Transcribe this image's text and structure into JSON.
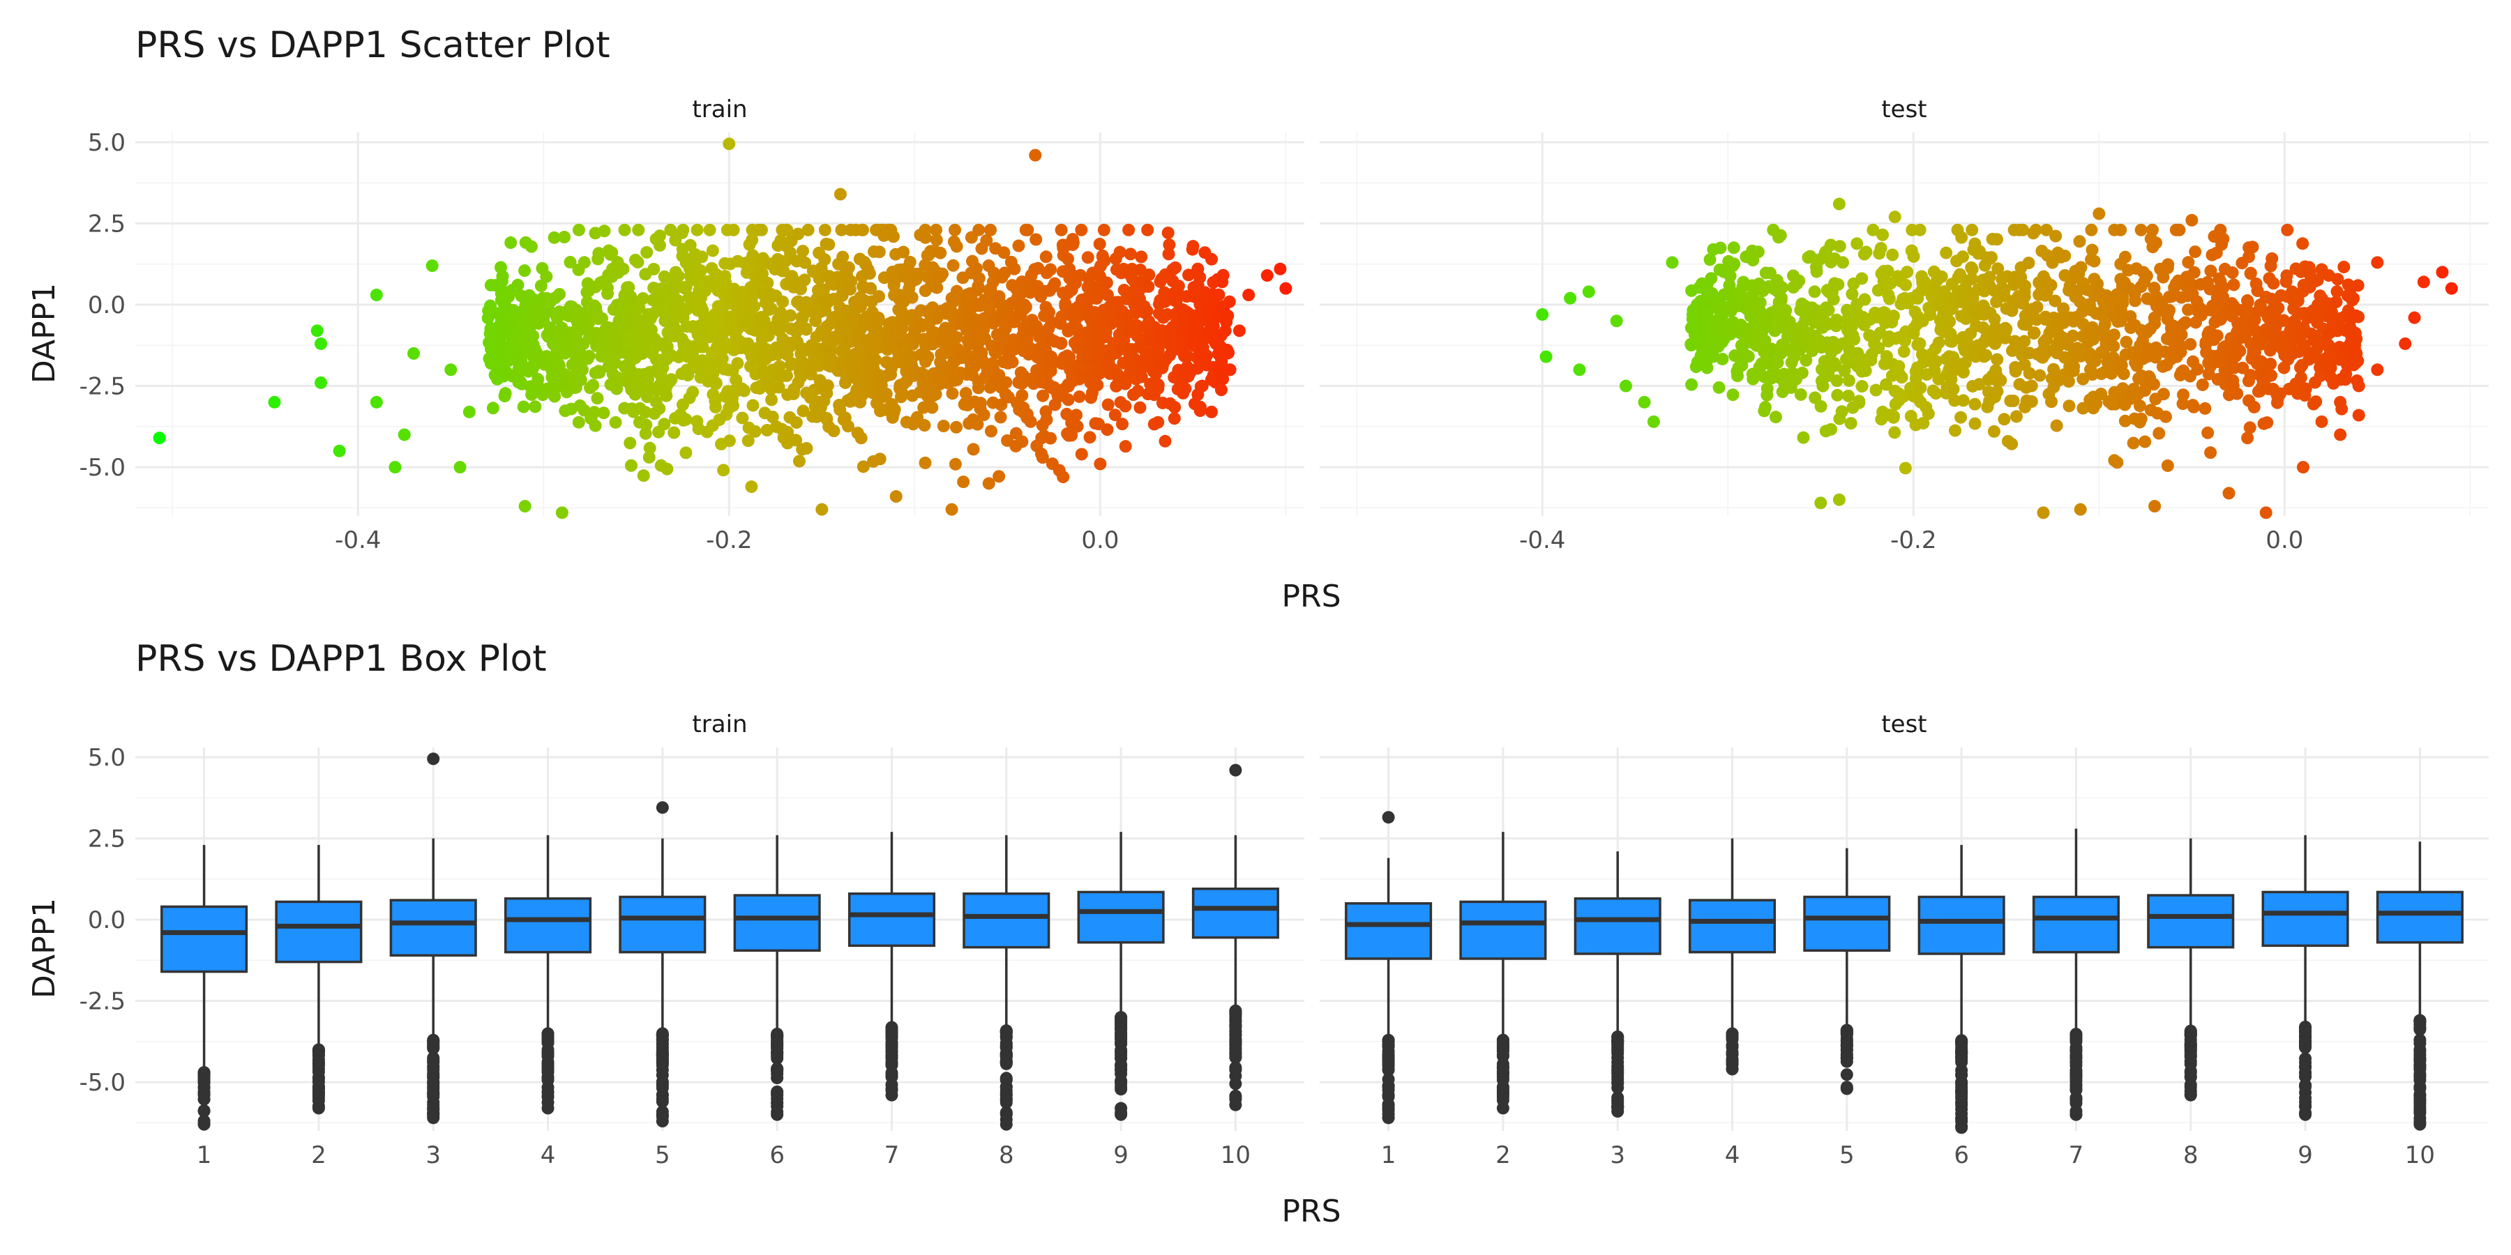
{
  "scatter": {
    "title": "PRS vs DAPP1 Scatter Plot",
    "xlabel": "PRS",
    "ylabel": "DAPP1",
    "color_low": "#00ff00",
    "color_mid": "#b8bb00",
    "color_high": "#ff1a00"
  },
  "box": {
    "title": "PRS vs DAPP1 Box Plot",
    "xlabel": "PRS",
    "ylabel": "DAPP1",
    "fill_color": "#1e90ff",
    "line_color": "#333333"
  },
  "chart_data": [
    {
      "type": "scatter",
      "title": "PRS vs DAPP1 Scatter Plot",
      "xlabel": "PRS",
      "ylabel": "DAPP1",
      "grid": true,
      "panels": [
        {
          "name": "train",
          "xlim": [
            -0.52,
            0.11
          ],
          "ylim": [
            -6.5,
            5.3
          ],
          "x_ticks": [
            -0.4,
            -0.2,
            0.0
          ],
          "x_tick_labels": [
            "-0.4",
            "-0.2",
            "0.0"
          ],
          "y_ticks": [
            -5.0,
            -2.5,
            0.0,
            2.5,
            5.0
          ],
          "y_tick_labels": [
            "-5.0",
            "-2.5",
            "0.0",
            "2.5",
            "5.0"
          ],
          "cloud": {
            "x_range": [
              -0.33,
              0.07
            ],
            "y_center": -1.0,
            "y_spread": 1.6,
            "count": 2200
          },
          "points": [
            [
              -0.507,
              -4.1
            ],
            [
              -0.445,
              -3.0
            ],
            [
              -0.42,
              -2.4
            ],
            [
              -0.42,
              -1.2
            ],
            [
              -0.422,
              -0.8
            ],
            [
              -0.41,
              -4.5
            ],
            [
              -0.39,
              -3.0
            ],
            [
              -0.39,
              0.3
            ],
            [
              -0.38,
              -5.0
            ],
            [
              -0.375,
              -4.0
            ],
            [
              -0.37,
              -1.5
            ],
            [
              -0.36,
              1.2
            ],
            [
              -0.35,
              -2.0
            ],
            [
              -0.345,
              -5.0
            ],
            [
              -0.34,
              -3.3
            ],
            [
              -0.2,
              4.95
            ],
            [
              -0.035,
              4.6
            ],
            [
              -0.14,
              3.4
            ],
            [
              -0.29,
              -6.4
            ],
            [
              -0.31,
              -6.2
            ],
            [
              -0.15,
              -6.3
            ],
            [
              -0.08,
              -6.3
            ],
            [
              0.1,
              0.5
            ],
            [
              0.097,
              1.1
            ],
            [
              0.09,
              0.9
            ],
            [
              0.08,
              0.3
            ],
            [
              0.075,
              -0.8
            ],
            [
              0.07,
              -2.0
            ],
            [
              0.06,
              -3.3
            ],
            [
              0.055,
              -2.5
            ],
            [
              0.05,
              1.8
            ],
            [
              0.04,
              -3.5
            ],
            [
              0.035,
              -4.2
            ],
            [
              0.0,
              -4.9
            ],
            [
              -0.02,
              -5.3
            ],
            [
              -0.01,
              -4.6
            ],
            [
              0.06,
              1.4
            ],
            [
              0.065,
              -1.3
            ],
            [
              -0.06,
              -5.5
            ],
            [
              -0.11,
              -5.9
            ]
          ]
        },
        {
          "name": "test",
          "xlim": [
            -0.52,
            0.11
          ],
          "ylim": [
            -6.5,
            5.3
          ],
          "x_ticks": [
            -0.4,
            -0.2,
            0.0
          ],
          "x_tick_labels": [
            "-0.4",
            "-0.2",
            "0.0"
          ],
          "y_ticks": [
            -5.0,
            -2.5,
            0.0,
            2.5,
            5.0
          ],
          "y_tick_labels": [
            "-5.0",
            "-2.5",
            "0.0",
            "2.5",
            "5.0"
          ],
          "cloud": {
            "x_range": [
              -0.32,
              0.04
            ],
            "y_center": -0.8,
            "y_spread": 1.45,
            "count": 1400
          },
          "points": [
            [
              -0.4,
              -0.3
            ],
            [
              -0.398,
              -1.6
            ],
            [
              -0.385,
              0.2
            ],
            [
              -0.38,
              -2.0
            ],
            [
              -0.375,
              0.4
            ],
            [
              -0.36,
              -0.5
            ],
            [
              -0.355,
              -2.5
            ],
            [
              -0.345,
              -3.0
            ],
            [
              -0.34,
              -3.6
            ],
            [
              -0.33,
              1.3
            ],
            [
              -0.24,
              3.1
            ],
            [
              -0.21,
              2.7
            ],
            [
              -0.1,
              2.8
            ],
            [
              -0.05,
              2.6
            ],
            [
              -0.25,
              -6.1
            ],
            [
              -0.24,
              -6.0
            ],
            [
              -0.13,
              -6.4
            ],
            [
              -0.11,
              -6.3
            ],
            [
              -0.07,
              -6.2
            ],
            [
              -0.01,
              -6.4
            ],
            [
              -0.03,
              -5.8
            ],
            [
              0.09,
              0.5
            ],
            [
              0.085,
              1.0
            ],
            [
              0.075,
              0.7
            ],
            [
              0.07,
              -0.4
            ],
            [
              0.065,
              -1.2
            ],
            [
              0.05,
              -2.0
            ],
            [
              0.04,
              -2.5
            ],
            [
              0.03,
              -3.0
            ],
            [
              0.03,
              -4.0
            ],
            [
              0.05,
              1.3
            ],
            [
              0.02,
              -3.6
            ],
            [
              -0.02,
              -4.1
            ],
            [
              0.01,
              -5.0
            ],
            [
              0.04,
              -3.4
            ]
          ]
        }
      ]
    },
    {
      "type": "box",
      "title": "PRS vs DAPP1 Box Plot",
      "xlabel": "PRS",
      "ylabel": "DAPP1",
      "grid": true,
      "categories": [
        "1",
        "2",
        "3",
        "4",
        "5",
        "6",
        "7",
        "8",
        "9",
        "10"
      ],
      "ylim": [
        -6.5,
        5.3
      ],
      "y_ticks": [
        -5.0,
        -2.5,
        0.0,
        2.5,
        5.0
      ],
      "y_tick_labels": [
        "-5.0",
        "-2.5",
        "0.0",
        "2.5",
        "5.0"
      ],
      "panels": [
        {
          "name": "train",
          "boxes": [
            {
              "cat": "1",
              "whisker_low": -4.6,
              "q1": -1.6,
              "median": -0.4,
              "q3": 0.4,
              "whisker_high": 2.3,
              "out_high": [],
              "out_low_range": [
                -6.3,
                -4.7
              ]
            },
            {
              "cat": "2",
              "whisker_low": -3.9,
              "q1": -1.3,
              "median": -0.2,
              "q3": 0.55,
              "whisker_high": 2.3,
              "out_high": [],
              "out_low_range": [
                -5.8,
                -4.0
              ]
            },
            {
              "cat": "3",
              "whisker_low": -3.6,
              "q1": -1.1,
              "median": -0.1,
              "q3": 0.6,
              "whisker_high": 2.5,
              "out_high": [
                4.95
              ],
              "out_low_range": [
                -6.1,
                -3.7
              ]
            },
            {
              "cat": "4",
              "whisker_low": -3.4,
              "q1": -1.0,
              "median": 0.0,
              "q3": 0.65,
              "whisker_high": 2.6,
              "out_high": [],
              "out_low_range": [
                -5.8,
                -3.5
              ]
            },
            {
              "cat": "5",
              "whisker_low": -3.4,
              "q1": -1.0,
              "median": 0.05,
              "q3": 0.7,
              "whisker_high": 2.5,
              "out_high": [
                3.45
              ],
              "out_low_range": [
                -6.2,
                -3.5
              ]
            },
            {
              "cat": "6",
              "whisker_low": -3.4,
              "q1": -0.95,
              "median": 0.05,
              "q3": 0.75,
              "whisker_high": 2.6,
              "out_high": [],
              "out_low_range": [
                -6.0,
                -3.5
              ]
            },
            {
              "cat": "7",
              "whisker_low": -3.2,
              "q1": -0.8,
              "median": 0.15,
              "q3": 0.8,
              "whisker_high": 2.7,
              "out_high": [],
              "out_low_range": [
                -5.4,
                -3.3
              ]
            },
            {
              "cat": "8",
              "whisker_low": -3.3,
              "q1": -0.85,
              "median": 0.1,
              "q3": 0.8,
              "whisker_high": 2.6,
              "out_high": [],
              "out_low_range": [
                -6.3,
                -3.4
              ]
            },
            {
              "cat": "9",
              "whisker_low": -2.9,
              "q1": -0.7,
              "median": 0.25,
              "q3": 0.85,
              "whisker_high": 2.7,
              "out_high": [],
              "out_low_range": [
                -6.0,
                -3.0
              ]
            },
            {
              "cat": "10",
              "whisker_low": -2.7,
              "q1": -0.55,
              "median": 0.35,
              "q3": 0.95,
              "whisker_high": 2.6,
              "out_high": [
                4.6
              ],
              "out_low_range": [
                -5.7,
                -2.8
              ]
            }
          ]
        },
        {
          "name": "test",
          "boxes": [
            {
              "cat": "1",
              "whisker_low": -3.6,
              "q1": -1.2,
              "median": -0.15,
              "q3": 0.5,
              "whisker_high": 1.9,
              "out_high": [
                3.15
              ],
              "out_low_range": [
                -6.1,
                -3.7
              ]
            },
            {
              "cat": "2",
              "whisker_low": -3.6,
              "q1": -1.2,
              "median": -0.1,
              "q3": 0.55,
              "whisker_high": 2.7,
              "out_high": [],
              "out_low_range": [
                -5.8,
                -3.7
              ]
            },
            {
              "cat": "3",
              "whisker_low": -3.5,
              "q1": -1.05,
              "median": 0.0,
              "q3": 0.65,
              "whisker_high": 2.1,
              "out_high": [],
              "out_low_range": [
                -5.9,
                -3.6
              ]
            },
            {
              "cat": "4",
              "whisker_low": -3.4,
              "q1": -1.0,
              "median": -0.05,
              "q3": 0.6,
              "whisker_high": 2.5,
              "out_high": [],
              "out_low_range": [
                -4.6,
                -3.5
              ]
            },
            {
              "cat": "5",
              "whisker_low": -3.3,
              "q1": -0.95,
              "median": 0.05,
              "q3": 0.7,
              "whisker_high": 2.2,
              "out_high": [],
              "out_low_range": [
                -5.2,
                -3.4
              ]
            },
            {
              "cat": "6",
              "whisker_low": -3.6,
              "q1": -1.05,
              "median": -0.05,
              "q3": 0.7,
              "whisker_high": 2.3,
              "out_high": [],
              "out_low_range": [
                -6.4,
                -3.7
              ]
            },
            {
              "cat": "7",
              "whisker_low": -3.4,
              "q1": -1.0,
              "median": 0.05,
              "q3": 0.7,
              "whisker_high": 2.8,
              "out_high": [],
              "out_low_range": [
                -6.0,
                -3.5
              ]
            },
            {
              "cat": "8",
              "whisker_low": -3.3,
              "q1": -0.85,
              "median": 0.1,
              "q3": 0.75,
              "whisker_high": 2.5,
              "out_high": [],
              "out_low_range": [
                -5.4,
                -3.4
              ]
            },
            {
              "cat": "9",
              "whisker_low": -3.2,
              "q1": -0.8,
              "median": 0.2,
              "q3": 0.85,
              "whisker_high": 2.6,
              "out_high": [],
              "out_low_range": [
                -6.0,
                -3.3
              ]
            },
            {
              "cat": "10",
              "whisker_low": -3.0,
              "q1": -0.7,
              "median": 0.2,
              "q3": 0.85,
              "whisker_high": 2.4,
              "out_high": [],
              "out_low_range": [
                -6.3,
                -3.1
              ]
            }
          ]
        }
      ]
    }
  ]
}
